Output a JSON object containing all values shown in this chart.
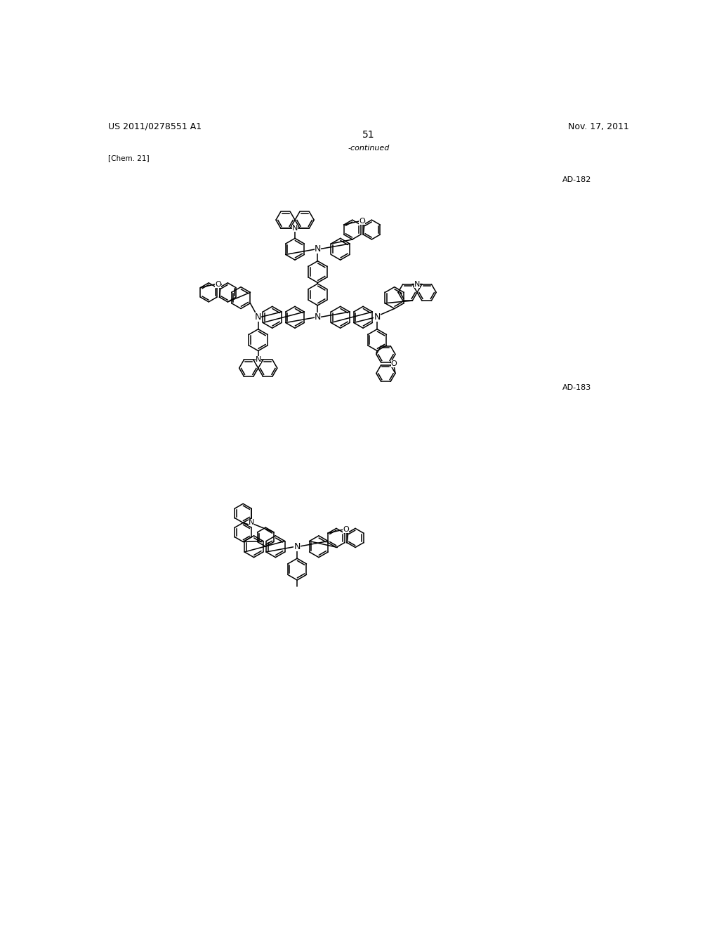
{
  "page_number": "51",
  "patent_number": "US 2011/0278551 A1",
  "patent_date": "Nov. 17, 2011",
  "continued_label": "-continued",
  "chem_label": "[Chem. 21]",
  "ad182_label": "AD-182",
  "ad183_label": "AD-183",
  "background_color": "#ffffff",
  "line_width": 1.1,
  "header_fontsize": 9,
  "label_fontsize": 8
}
